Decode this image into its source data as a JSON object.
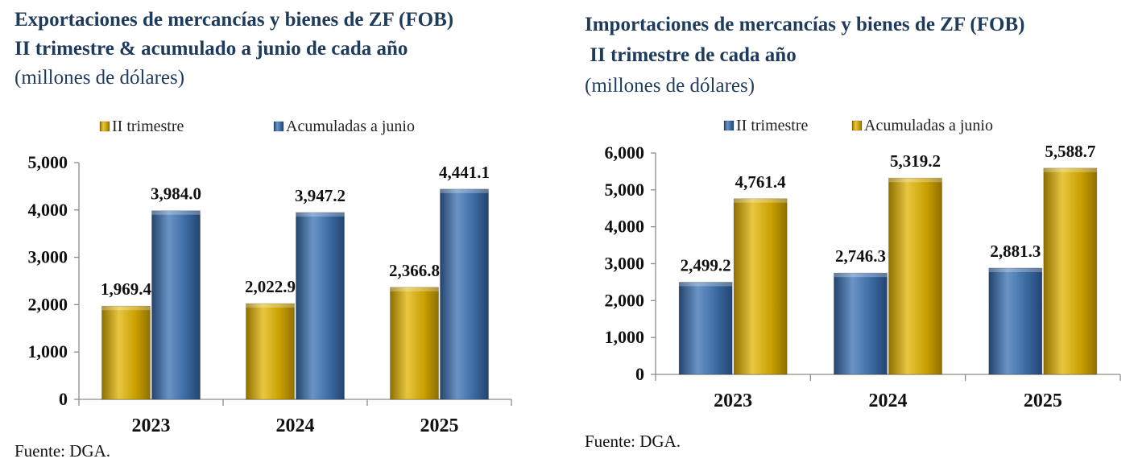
{
  "colors": {
    "gold": "#c9a000",
    "gold_light": "#e8c640",
    "gold_dark": "#8f7000",
    "blue": "#3b6aa3",
    "blue_light": "#6a94c6",
    "blue_dark": "#23456f",
    "title": "#1f3b5b"
  },
  "left": {
    "title_line1": "Exportaciones de mercancías y bienes de ZF (FOB)",
    "title_line2": "II trimestre & acumulado a junio de cada año",
    "unit": "(millones de dólares)",
    "source": "Fuente: DGA."
  },
  "right": {
    "title_line1": "Importaciones de mercancías y bienes de ZF (FOB)",
    "title_line2": " II trimestre de cada año",
    "unit": "(millones de dólares)",
    "source": "Fuente: DGA."
  },
  "chart_data": [
    {
      "type": "bar",
      "categories": [
        "2023",
        "2024",
        "2025"
      ],
      "series": [
        {
          "name": "II trimestre",
          "values": [
            1969.4,
            2022.9,
            2366.8
          ],
          "labels": [
            "1,969.4",
            "2,022.9",
            "2,366.8"
          ],
          "color": "#c9a000"
        },
        {
          "name": "Acumuladas a junio",
          "values": [
            3984.0,
            3947.2,
            4441.1
          ],
          "labels": [
            "3,984.0",
            "3,947.2",
            "4,441.1"
          ],
          "color": "#3b6aa3"
        }
      ],
      "ylim": [
        0,
        5000
      ],
      "yticks": [
        0,
        1000,
        2000,
        3000,
        4000,
        5000
      ],
      "ytick_labels": [
        "0",
        "1,000",
        "2,000",
        "3,000",
        "4,000",
        "5,000"
      ],
      "legend": "top-center",
      "grid": false
    },
    {
      "type": "bar",
      "categories": [
        "2023",
        "2024",
        "2025"
      ],
      "series": [
        {
          "name": "II trimestre",
          "values": [
            2499.2,
            2746.3,
            2881.3
          ],
          "labels": [
            "2,499.2",
            "2,746.3",
            "2,881.3"
          ],
          "color": "#3b6aa3"
        },
        {
          "name": "Acumuladas a junio",
          "values": [
            4761.4,
            5319.2,
            5588.7
          ],
          "labels": [
            "4,761.4",
            "5,319.2",
            "5,588.7"
          ],
          "color": "#c9a000"
        }
      ],
      "ylim": [
        0,
        6000
      ],
      "yticks": [
        0,
        1000,
        2000,
        3000,
        4000,
        5000,
        6000
      ],
      "ytick_labels": [
        "0",
        "1,000",
        "2,000",
        "3,000",
        "4,000",
        "5,000",
        "6,000"
      ],
      "legend": "top-center",
      "grid": false
    }
  ]
}
